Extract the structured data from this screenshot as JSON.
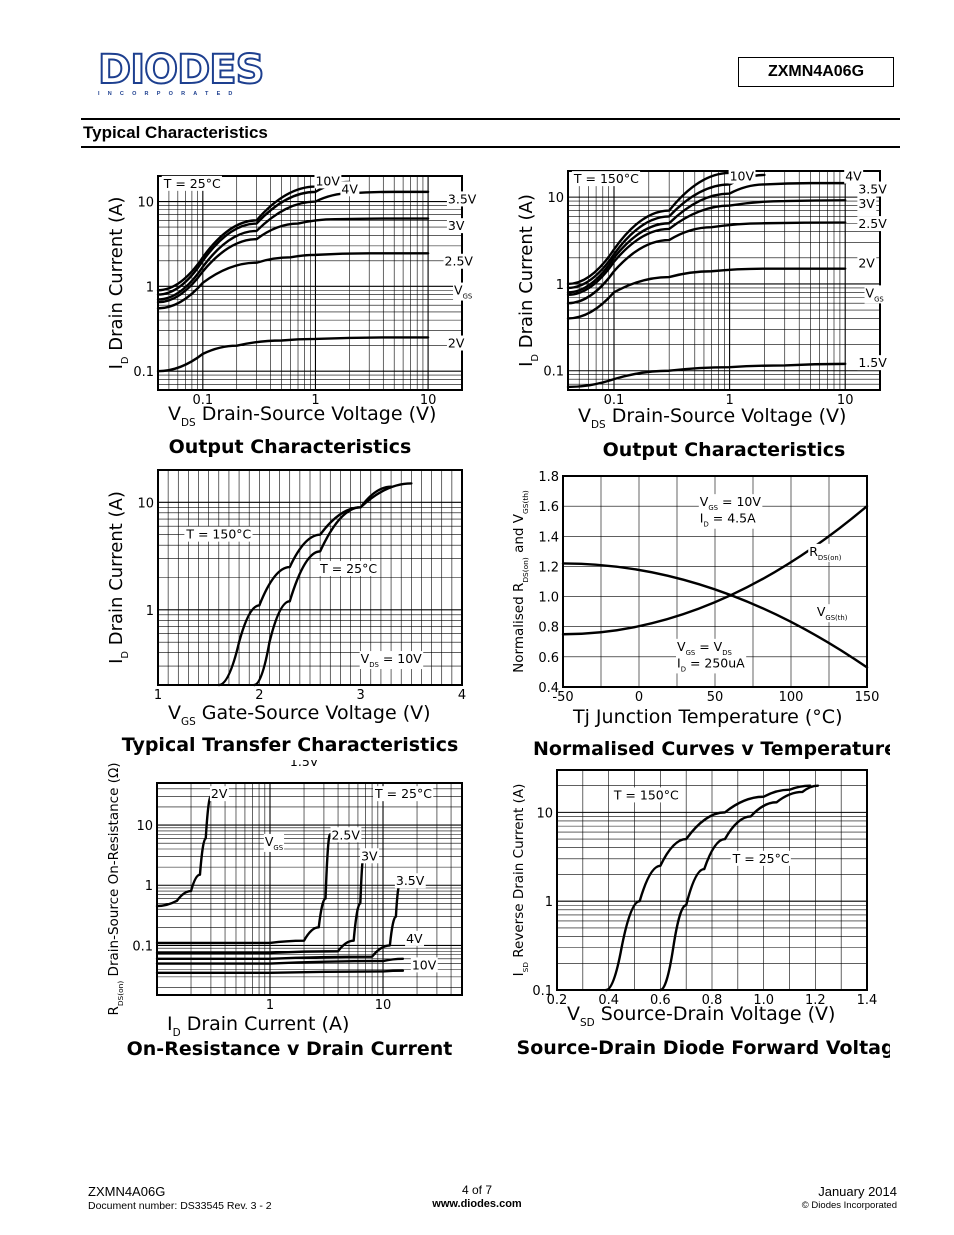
{
  "header": {
    "logo_text": "DIODES",
    "logo_sub": "INCORPORATED",
    "part_number": "ZXMN4A06G",
    "section_title": "Typical Characteristics"
  },
  "footer": {
    "part": "ZXMN4A06G",
    "doc": "Document number: DS33545 Rev. 3 - 2",
    "page": "4 of 7",
    "url": "www.diodes.com",
    "date": "January 2014",
    "copyright": "© Diodes Incorporated"
  },
  "chart_data": [
    {
      "id": "c1",
      "type": "line",
      "title": "Output Characteristics",
      "xlabel": "V_DS Drain-Source Voltage (V)",
      "ylabel": "I_D Drain Current (A)",
      "xscale": "log",
      "yscale": "log",
      "xlim": [
        0.04,
        20
      ],
      "ylim": [
        0.06,
        20
      ],
      "xticks": [
        {
          "v": 0.1,
          "t": "0.1"
        },
        {
          "v": 1,
          "t": "1"
        },
        {
          "v": 10,
          "t": "10"
        }
      ],
      "yticks": [
        {
          "v": 0.1,
          "t": "0.1"
        },
        {
          "v": 1,
          "t": "1"
        },
        {
          "v": 10,
          "t": "10"
        }
      ],
      "annotations": [
        {
          "x": 0.045,
          "y": 14.5,
          "t": "T = 25°C"
        },
        {
          "x": 1.0,
          "y": 15.5,
          "t": "10V"
        },
        {
          "x": 1.7,
          "y": 12.5,
          "t": "4V"
        },
        {
          "x": 15,
          "y": 9.5,
          "t": "3.5V"
        },
        {
          "x": 15,
          "y": 4.6,
          "t": "3V"
        },
        {
          "x": 14,
          "y": 1.75,
          "t": "2.5V"
        },
        {
          "x": 17,
          "y": 0.8,
          "t": "V_GS"
        },
        {
          "x": 15,
          "y": 0.19,
          "t": "2V"
        }
      ],
      "series": [
        {
          "name": "10V",
          "x": [
            0.04,
            0.1,
            0.3,
            1,
            1.5
          ],
          "y": [
            0.9,
            2.2,
            6,
            15,
            19
          ]
        },
        {
          "name": "4V",
          "x": [
            0.04,
            0.1,
            0.3,
            1,
            2
          ],
          "y": [
            0.8,
            2.0,
            5.5,
            13,
            17
          ]
        },
        {
          "name": "3.5V",
          "x": [
            0.04,
            0.1,
            0.3,
            1,
            2,
            5,
            10
          ],
          "y": [
            0.7,
            1.7,
            4.5,
            10,
            12.5,
            13,
            13
          ]
        },
        {
          "name": "3V",
          "x": [
            0.04,
            0.1,
            0.3,
            0.7,
            1.5,
            5,
            10
          ],
          "y": [
            0.65,
            1.5,
            3.6,
            5.5,
            6.2,
            6.3,
            6.3
          ]
        },
        {
          "name": "2.5V",
          "x": [
            0.04,
            0.1,
            0.3,
            0.6,
            1,
            3,
            10
          ],
          "y": [
            0.55,
            1.1,
            1.9,
            2.2,
            2.35,
            2.45,
            2.45
          ]
        },
        {
          "name": "2V",
          "x": [
            0.04,
            0.1,
            0.2,
            0.5,
            1,
            5,
            10
          ],
          "y": [
            0.1,
            0.16,
            0.2,
            0.23,
            0.24,
            0.25,
            0.25
          ]
        }
      ]
    },
    {
      "id": "c2",
      "type": "line",
      "title": "Output Characteristics",
      "xlabel": "V_DS Drain-Source Voltage (V)",
      "ylabel": "I_D Drain Current (A)",
      "xscale": "log",
      "yscale": "log",
      "xlim": [
        0.04,
        20
      ],
      "ylim": [
        0.06,
        20
      ],
      "xticks": [
        {
          "v": 0.1,
          "t": "0.1"
        },
        {
          "v": 1,
          "t": "1"
        },
        {
          "v": 10,
          "t": "10"
        }
      ],
      "yticks": [
        {
          "v": 0.1,
          "t": "0.1"
        },
        {
          "v": 1,
          "t": "1"
        },
        {
          "v": 10,
          "t": "10"
        }
      ],
      "annotations": [
        {
          "x": 0.045,
          "y": 14.5,
          "t": "T = 150°C"
        },
        {
          "x": 1.0,
          "y": 15.5,
          "t": "10V"
        },
        {
          "x": 10,
          "y": 15.5,
          "t": "4V"
        },
        {
          "x": 13,
          "y": 11,
          "t": "3.5V"
        },
        {
          "x": 13,
          "y": 7.5,
          "t": "3V"
        },
        {
          "x": 13,
          "y": 4.4,
          "t": "2.5V"
        },
        {
          "x": 13,
          "y": 1.55,
          "t": "2V"
        },
        {
          "x": 15,
          "y": 0.7,
          "t": "V_GS"
        },
        {
          "x": 13,
          "y": 0.11,
          "t": "1.5V"
        }
      ],
      "series": [
        {
          "name": "10V",
          "x": [
            0.04,
            0.1,
            0.3,
            1
          ],
          "y": [
            1.0,
            2.5,
            7,
            19
          ]
        },
        {
          "name": "4V",
          "x": [
            0.04,
            0.1,
            0.3,
            1,
            2
          ],
          "y": [
            0.9,
            2.2,
            6,
            14,
            18
          ]
        },
        {
          "name": "3.5V",
          "x": [
            0.04,
            0.1,
            0.3,
            1,
            2,
            5,
            10
          ],
          "y": [
            0.8,
            2,
            5,
            11,
            14,
            14.5,
            14.5
          ]
        },
        {
          "name": "3V",
          "x": [
            0.04,
            0.1,
            0.3,
            1,
            3,
            10
          ],
          "y": [
            0.75,
            1.8,
            4.3,
            8,
            9,
            9.2
          ]
        },
        {
          "name": "2.5V",
          "x": [
            0.04,
            0.1,
            0.3,
            0.7,
            2,
            10
          ],
          "y": [
            0.6,
            1.4,
            3.2,
            4.5,
            5,
            5.1
          ]
        },
        {
          "name": "2V",
          "x": [
            0.04,
            0.1,
            0.3,
            0.7,
            2,
            10
          ],
          "y": [
            0.4,
            0.8,
            1.2,
            1.4,
            1.5,
            1.5
          ]
        },
        {
          "name": "1.5V",
          "x": [
            0.04,
            0.1,
            0.3,
            1,
            3,
            10
          ],
          "y": [
            0.065,
            0.08,
            0.1,
            0.11,
            0.115,
            0.12
          ]
        }
      ]
    },
    {
      "id": "c3",
      "type": "line",
      "title": "Typical Transfer Characteristics",
      "xlabel": "V_GS Gate-Source Voltage (V)",
      "ylabel": "I_D Drain Current (A)",
      "xscale": "linear",
      "yscale": "log",
      "xlim": [
        1,
        4
      ],
      "ylim": [
        0.2,
        20
      ],
      "xticks": [
        {
          "v": 1,
          "t": "1"
        },
        {
          "v": 2,
          "t": "2"
        },
        {
          "v": 3,
          "t": "3"
        },
        {
          "v": 4,
          "t": "4"
        }
      ],
      "yticks": [
        {
          "v": 1,
          "t": "1"
        },
        {
          "v": 10,
          "t": "10"
        }
      ],
      "annotations": [
        {
          "x": 1.28,
          "y": 4.6,
          "t": "T = 150°C"
        },
        {
          "x": 2.6,
          "y": 2.2,
          "t": "T = 25°C"
        },
        {
          "x": 3.0,
          "y": 0.32,
          "t": "V_DS = 10V"
        }
      ],
      "series": [
        {
          "name": "T = 150°C",
          "x": [
            1.6,
            1.8,
            2.0,
            2.3,
            2.6,
            3.0,
            3.3
          ],
          "y": [
            0.2,
            0.5,
            1.1,
            2.5,
            5,
            9,
            14
          ]
        },
        {
          "name": "T = 25°C",
          "x": [
            1.95,
            2.1,
            2.3,
            2.6,
            3.0,
            3.5
          ],
          "y": [
            0.2,
            0.5,
            1.2,
            3.5,
            9,
            15
          ]
        }
      ]
    },
    {
      "id": "c4",
      "type": "line",
      "title": "Normalised Curves v Temperature",
      "xlabel": "Tj Junction Temperature (°C)",
      "ylabel": "Normalised R_DS(on) and V_GS(th)",
      "xscale": "linear",
      "yscale": "linear",
      "xlim": [
        -50,
        150
      ],
      "ylim": [
        0.4,
        1.8
      ],
      "grid_x": [
        -50,
        -25,
        0,
        25,
        50,
        75,
        100,
        125,
        150
      ],
      "grid_y": [
        0.4,
        0.6,
        0.8,
        1.0,
        1.2,
        1.4,
        1.6,
        1.8
      ],
      "xticks": [
        {
          "v": -50,
          "t": "-50"
        },
        {
          "v": 0,
          "t": "0"
        },
        {
          "v": 50,
          "t": "50"
        },
        {
          "v": 100,
          "t": "100"
        },
        {
          "v": 150,
          "t": "150"
        }
      ],
      "yticks": [
        {
          "v": 0.4,
          "t": "0.4"
        },
        {
          "v": 0.6,
          "t": "0.6"
        },
        {
          "v": 0.8,
          "t": "0.8"
        },
        {
          "v": 1.0,
          "t": "1.0"
        },
        {
          "v": 1.2,
          "t": "1.2"
        },
        {
          "v": 1.4,
          "t": "1.4"
        },
        {
          "v": 1.6,
          "t": "1.6"
        },
        {
          "v": 1.8,
          "t": "1.8"
        }
      ],
      "annotations": [
        {
          "x": 40,
          "y": 1.6,
          "t": "V_GS = 10V"
        },
        {
          "x": 40,
          "y": 1.49,
          "t": "I_D = 4.5A"
        },
        {
          "x": 112,
          "y": 1.27,
          "t": "R_DS(on)"
        },
        {
          "x": 117,
          "y": 0.87,
          "t": "V_GS(th)"
        },
        {
          "x": 25,
          "y": 0.64,
          "t": "V_GS = V_DS"
        },
        {
          "x": 25,
          "y": 0.53,
          "t": "I_D = 250uA"
        }
      ],
      "series": [
        {
          "name": "R_DS(on)",
          "x": [
            -50,
            150
          ],
          "y": [
            0.75,
            1.6
          ]
        },
        {
          "name": "V_GS(th)",
          "x": [
            -50,
            150
          ],
          "y": [
            1.22,
            0.53
          ]
        }
      ]
    },
    {
      "id": "c5",
      "type": "line",
      "title": "On-Resistance v Drain Current",
      "xlabel": "I_D Drain Current (A)",
      "ylabel": "R_DS(on) Drain-Source On-Resistance (Ω)",
      "xscale": "log",
      "yscale": "log",
      "xlim": [
        0.1,
        50
      ],
      "ylim": [
        0.015,
        50
      ],
      "xticks": [
        {
          "v": 1,
          "t": "1"
        },
        {
          "v": 10,
          "t": "10"
        }
      ],
      "yticks": [
        {
          "v": 0.1,
          "t": "0.1"
        },
        {
          "v": 1,
          "t": "1"
        },
        {
          "v": 10,
          "t": "10"
        }
      ],
      "annotations": [
        {
          "x": 1.5,
          "y": 95,
          "t": "1.5V"
        },
        {
          "x": 0.3,
          "y": 28,
          "t": "2V"
        },
        {
          "x": 8.5,
          "y": 28,
          "t": "T = 25°C"
        },
        {
          "x": 0.9,
          "y": 4.5,
          "t": "V_GS"
        },
        {
          "x": 3.5,
          "y": 5.8,
          "t": "2.5V"
        },
        {
          "x": 6.4,
          "y": 2.6,
          "t": "3V"
        },
        {
          "x": 13,
          "y": 1.0,
          "t": "3.5V"
        },
        {
          "x": 16,
          "y": 0.11,
          "t": "4V"
        },
        {
          "x": 18,
          "y": 0.04,
          "t": "10V"
        }
      ],
      "series": [
        {
          "name": "2V",
          "x": [
            0.1,
            0.15,
            0.2,
            0.24,
            0.27,
            0.3
          ],
          "y": [
            0.45,
            0.55,
            0.8,
            1.5,
            6,
            30
          ]
        },
        {
          "name": "2.5V",
          "x": [
            0.1,
            1,
            2,
            2.7,
            3.1,
            3.4
          ],
          "y": [
            0.11,
            0.11,
            0.12,
            0.2,
            0.6,
            7
          ]
        },
        {
          "name": "3V",
          "x": [
            0.1,
            1,
            4,
            5.5,
            6.3,
            6.8
          ],
          "y": [
            0.075,
            0.075,
            0.08,
            0.12,
            0.5,
            3.5
          ]
        },
        {
          "name": "3.5V",
          "x": [
            0.1,
            1,
            8,
            11.5,
            13,
            14
          ],
          "y": [
            0.06,
            0.06,
            0.065,
            0.1,
            0.3,
            1.0
          ]
        },
        {
          "name": "4V",
          "x": [
            0.1,
            1,
            10,
            15
          ],
          "y": [
            0.05,
            0.05,
            0.055,
            0.06
          ]
        },
        {
          "name": "10V",
          "x": [
            0.1,
            1,
            10,
            15
          ],
          "y": [
            0.035,
            0.035,
            0.037,
            0.038
          ]
        }
      ]
    },
    {
      "id": "c6",
      "type": "line",
      "title": "Source-Drain Diode Forward Voltage",
      "xlabel": "V_SD Source-Drain Voltage (V)",
      "ylabel": "I_SD Reverse Drain Current (A)",
      "xscale": "linear",
      "yscale": "log",
      "xlim": [
        0.2,
        1.4
      ],
      "ylim": [
        0.1,
        30
      ],
      "grid_x": [
        0.2,
        0.3,
        0.4,
        0.5,
        0.6,
        0.7,
        0.8,
        0.9,
        1.0,
        1.1,
        1.2,
        1.3,
        1.4
      ],
      "xticks": [
        {
          "v": 0.2,
          "t": "0.2"
        },
        {
          "v": 0.4,
          "t": "0.4"
        },
        {
          "v": 0.6,
          "t": "0.6"
        },
        {
          "v": 0.8,
          "t": "0.8"
        },
        {
          "v": 1.0,
          "t": "1.0"
        },
        {
          "v": 1.2,
          "t": "1.2"
        },
        {
          "v": 1.4,
          "t": "1.4"
        }
      ],
      "yticks": [
        {
          "v": 0.1,
          "t": "0.1"
        },
        {
          "v": 1,
          "t": "1"
        },
        {
          "v": 10,
          "t": "10"
        }
      ],
      "annotations": [
        {
          "x": 0.42,
          "y": 14,
          "t": "T = 150°C"
        },
        {
          "x": 0.88,
          "y": 2.7,
          "t": "T = 25°C"
        }
      ],
      "series": [
        {
          "name": "T = 150°C",
          "x": [
            0.39,
            0.45,
            0.52,
            0.6,
            0.7,
            0.85,
            1.0,
            1.1,
            1.18
          ],
          "y": [
            0.1,
            0.3,
            1,
            2.5,
            5,
            10,
            15,
            18,
            20
          ]
        },
        {
          "name": "T = 25°C",
          "x": [
            0.6,
            0.65,
            0.7,
            0.77,
            0.85,
            0.95,
            1.05,
            1.15,
            1.21
          ],
          "y": [
            0.1,
            0.3,
            0.9,
            2.3,
            5,
            9,
            13,
            17,
            20
          ]
        }
      ]
    }
  ]
}
